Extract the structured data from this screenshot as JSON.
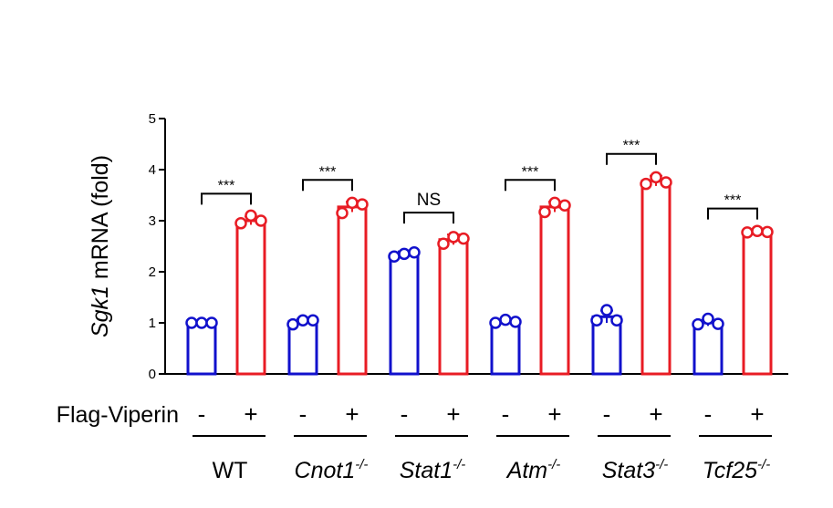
{
  "chart_data": {
    "type": "bar",
    "ylabel_italic": "Sgk1",
    "ylabel_rest": " mRNA (fold)",
    "ylim": [
      0,
      5
    ],
    "yticks": [
      "0",
      "1",
      "2",
      "3",
      "4",
      "5"
    ],
    "row_label": "Flag-Viperin",
    "treatment_labels": [
      "-",
      "+"
    ],
    "groups": [
      {
        "name": "WT",
        "superscript": "",
        "italic": false,
        "values": [
          1.0,
          3.0
        ],
        "points": [
          [
            1.0,
            1.0,
            1.0
          ],
          [
            2.95,
            3.1,
            3.0
          ]
        ],
        "errors": [
          0.02,
          0.08
        ],
        "significance": "***"
      },
      {
        "name": "Cnot1",
        "superscript": "-/-",
        "italic": true,
        "values": [
          1.03,
          3.27
        ],
        "points": [
          [
            0.97,
            1.05,
            1.05
          ],
          [
            3.15,
            3.35,
            3.32
          ]
        ],
        "errors": [
          0.05,
          0.1
        ],
        "significance": "***"
      },
      {
        "name": "Stat1",
        "superscript": "-/-",
        "italic": true,
        "values": [
          2.35,
          2.63
        ],
        "points": [
          [
            2.3,
            2.35,
            2.38
          ],
          [
            2.55,
            2.68,
            2.65
          ]
        ],
        "errors": [
          0.05,
          0.1
        ],
        "significance": "NS"
      },
      {
        "name": "Atm",
        "superscript": "-/-",
        "italic": true,
        "values": [
          1.03,
          3.27
        ],
        "points": [
          [
            1.0,
            1.06,
            1.02
          ],
          [
            3.17,
            3.35,
            3.3
          ]
        ],
        "errors": [
          0.04,
          0.1
        ],
        "significance": "***"
      },
      {
        "name": "Stat3",
        "superscript": "-/-",
        "italic": true,
        "values": [
          1.12,
          3.78
        ],
        "points": [
          [
            1.05,
            1.25,
            1.05
          ],
          [
            3.72,
            3.85,
            3.75
          ]
        ],
        "errors": [
          0.12,
          0.1
        ],
        "significance": "***"
      },
      {
        "name": "Tcf25",
        "superscript": "-/-",
        "italic": true,
        "values": [
          1.0,
          2.78
        ],
        "points": [
          [
            0.97,
            1.08,
            0.98
          ],
          [
            2.77,
            2.8,
            2.78
          ]
        ],
        "errors": [
          0.06,
          0.03
        ],
        "significance": "***"
      }
    ],
    "colors": {
      "minus": "#1111cc",
      "plus": "#e81c24"
    }
  }
}
